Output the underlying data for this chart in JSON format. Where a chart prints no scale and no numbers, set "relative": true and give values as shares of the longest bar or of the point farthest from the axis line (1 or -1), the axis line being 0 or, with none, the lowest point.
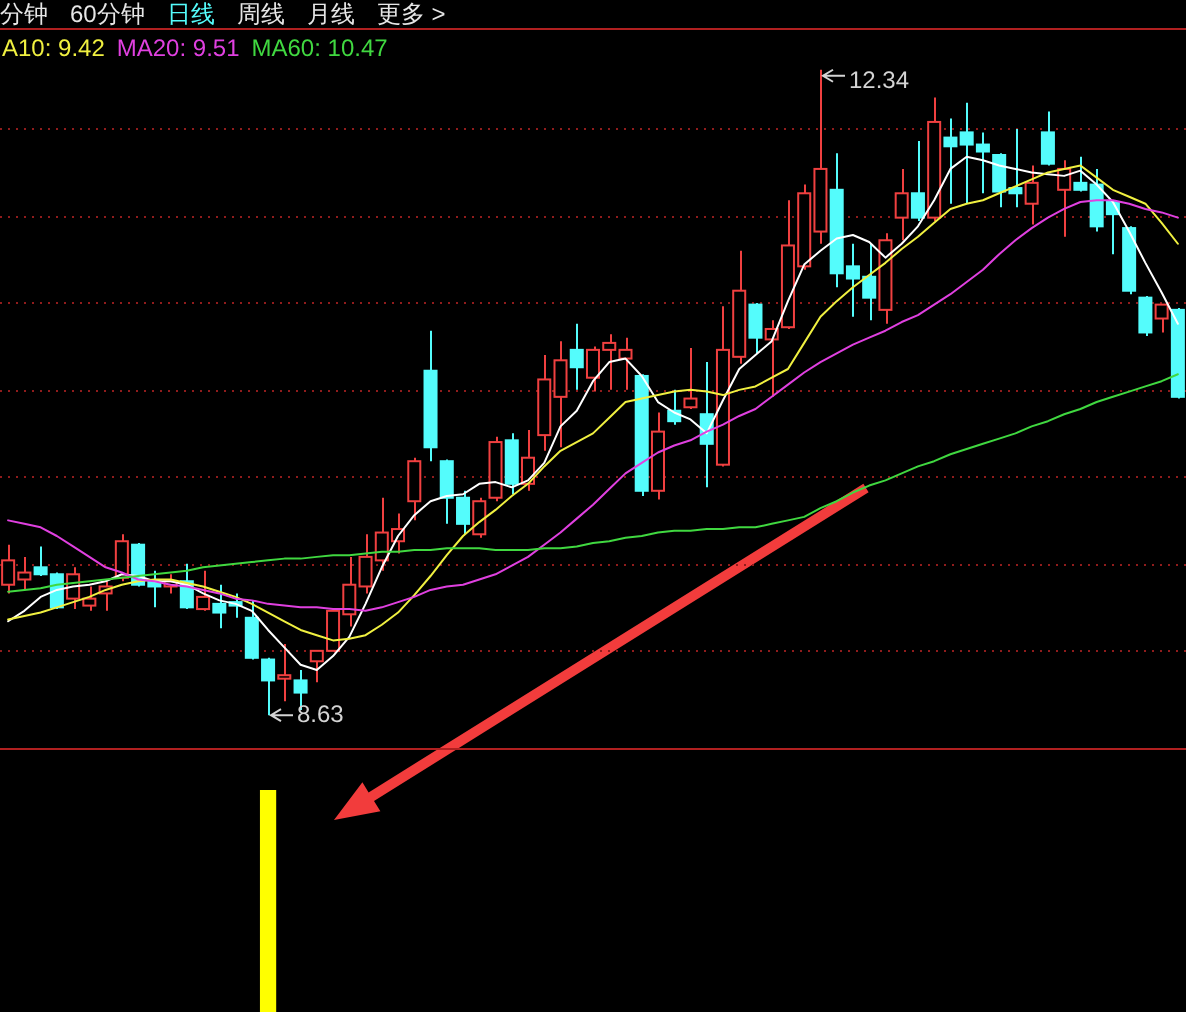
{
  "chart_data": [
    {
      "type": "other",
      "title": "日线",
      "annotations": [
        "分钟",
        "60分钟",
        "周线",
        "月线",
        "更多 >"
      ]
    },
    {
      "type": "candlestick",
      "categories": [
        null,
        null,
        null,
        null,
        null,
        null,
        null,
        null,
        null,
        null,
        null,
        null,
        null,
        null,
        null,
        null,
        null,
        null,
        null,
        null,
        null,
        null,
        null,
        null,
        null,
        null,
        null,
        null,
        null,
        null,
        null,
        null,
        null,
        null,
        null,
        null,
        null,
        null,
        null,
        null,
        null,
        null,
        null,
        null,
        null,
        null,
        null,
        null,
        null,
        null,
        null,
        null,
        null,
        null,
        null,
        null,
        null,
        null,
        null,
        null,
        null,
        null,
        null,
        null,
        null,
        null,
        null,
        null,
        null,
        null,
        null,
        null,
        null
      ],
      "ohlc": [
        [
          9.38,
          9.61,
          9.33,
          9.52
        ],
        [
          9.41,
          9.54,
          9.35,
          9.45
        ],
        [
          9.48,
          9.6,
          9.43,
          9.44
        ],
        [
          9.44,
          9.45,
          9.24,
          9.25
        ],
        [
          9.3,
          9.48,
          9.24,
          9.44
        ],
        [
          9.26,
          9.37,
          9.23,
          9.3
        ],
        [
          9.33,
          9.4,
          9.23,
          9.37
        ],
        [
          9.42,
          9.67,
          9.4,
          9.63
        ],
        [
          9.61,
          9.62,
          9.37,
          9.38
        ],
        [
          9.4,
          9.46,
          9.25,
          9.37
        ],
        [
          9.37,
          9.44,
          9.33,
          9.4
        ],
        [
          9.4,
          9.5,
          9.24,
          9.25
        ],
        [
          9.24,
          9.46,
          9.23,
          9.31
        ],
        [
          9.27,
          9.38,
          9.13,
          9.22
        ],
        [
          9.28,
          9.33,
          9.19,
          9.26
        ],
        [
          9.19,
          9.29,
          8.95,
          8.96
        ],
        [
          8.95,
          8.96,
          8.63,
          8.83
        ],
        [
          8.84,
          9.04,
          8.71,
          8.86
        ],
        [
          8.83,
          8.89,
          8.66,
          8.76
        ],
        [
          8.94,
          9.0,
          8.82,
          9.0
        ],
        [
          9.0,
          9.24,
          8.99,
          9.23
        ],
        [
          9.21,
          9.54,
          9.14,
          9.38
        ],
        [
          9.37,
          9.67,
          9.33,
          9.54
        ],
        [
          9.52,
          9.88,
          9.46,
          9.68
        ],
        [
          9.63,
          9.79,
          9.56,
          9.7
        ],
        [
          9.86,
          10.11,
          9.75,
          10.09
        ],
        [
          10.61,
          10.84,
          10.09,
          10.17
        ],
        [
          10.09,
          10.1,
          9.73,
          9.88
        ],
        [
          9.88,
          9.92,
          9.67,
          9.73
        ],
        [
          9.67,
          9.88,
          9.65,
          9.86
        ],
        [
          9.88,
          10.23,
          9.86,
          10.2
        ],
        [
          10.21,
          10.25,
          9.9,
          9.96
        ],
        [
          9.96,
          10.27,
          9.92,
          10.11
        ],
        [
          10.24,
          10.7,
          10.15,
          10.56
        ],
        [
          10.46,
          10.78,
          10.17,
          10.67
        ],
        [
          10.73,
          10.88,
          10.5,
          10.63
        ],
        [
          10.57,
          10.75,
          10.49,
          10.73
        ],
        [
          10.73,
          10.82,
          10.5,
          10.77
        ],
        [
          10.68,
          10.8,
          10.5,
          10.73
        ],
        [
          10.58,
          10.59,
          9.89,
          9.92
        ],
        [
          9.92,
          10.37,
          9.87,
          10.26
        ],
        [
          10.38,
          10.5,
          10.3,
          10.32
        ],
        [
          10.4,
          10.74,
          10.39,
          10.45
        ],
        [
          10.36,
          10.66,
          9.94,
          10.19
        ],
        [
          10.07,
          10.98,
          10.06,
          10.73
        ],
        [
          10.69,
          11.3,
          10.65,
          11.07
        ],
        [
          10.99,
          11.0,
          10.71,
          10.8
        ],
        [
          10.79,
          10.9,
          10.46,
          10.85
        ],
        [
          10.86,
          11.59,
          10.85,
          11.33
        ],
        [
          11.21,
          11.68,
          11.19,
          11.63
        ],
        [
          11.41,
          12.34,
          11.34,
          11.77
        ],
        [
          11.65,
          11.86,
          11.09,
          11.17
        ],
        [
          11.21,
          11.34,
          10.92,
          11.14
        ],
        [
          11.15,
          11.34,
          10.9,
          11.03
        ],
        [
          10.96,
          11.4,
          10.88,
          11.36
        ],
        [
          11.49,
          11.77,
          11.36,
          11.63
        ],
        [
          11.63,
          11.93,
          11.47,
          11.49
        ],
        [
          11.49,
          12.18,
          11.47,
          12.04
        ],
        [
          11.95,
          12.06,
          11.57,
          11.9
        ],
        [
          11.98,
          12.15,
          11.57,
          11.91
        ],
        [
          11.91,
          11.98,
          11.63,
          11.87
        ],
        [
          11.85,
          11.86,
          11.55,
          11.64
        ],
        [
          11.66,
          12.0,
          11.55,
          11.63
        ],
        [
          11.57,
          11.79,
          11.45,
          11.69
        ],
        [
          11.98,
          12.1,
          11.79,
          11.8
        ],
        [
          11.65,
          11.82,
          11.38,
          11.77
        ],
        [
          11.69,
          11.84,
          11.64,
          11.65
        ],
        [
          11.68,
          11.77,
          11.41,
          11.44
        ],
        [
          11.58,
          11.59,
          11.28,
          11.51
        ],
        [
          11.43,
          11.44,
          11.05,
          11.07
        ],
        [
          11.03,
          11.04,
          10.81,
          10.83
        ],
        [
          10.91,
          10.99,
          10.83,
          10.99
        ],
        [
          10.96,
          10.97,
          10.45,
          10.46
        ]
      ],
      "colors": [
        "#f04040",
        "#f04040",
        "#54fcfc",
        "#54fcfc",
        "#f04040",
        "#f04040",
        "#f04040",
        "#f04040",
        "#54fcfc",
        "#54fcfc",
        "#f04040",
        "#54fcfc",
        "#f04040",
        "#54fcfc",
        "#54fcfc",
        "#54fcfc",
        "#54fcfc",
        "#f04040",
        "#54fcfc",
        "#f04040",
        "#f04040",
        "#f04040",
        "#f04040",
        "#f04040",
        "#f04040",
        "#f04040",
        "#54fcfc",
        "#54fcfc",
        "#54fcfc",
        "#f04040",
        "#f04040",
        "#54fcfc",
        "#f04040",
        "#f04040",
        "#f04040",
        "#54fcfc",
        "#f04040",
        "#f04040",
        "#f04040",
        "#54fcfc",
        "#f04040",
        "#54fcfc",
        "#f04040",
        "#54fcfc",
        "#f04040",
        "#f04040",
        "#54fcfc",
        "#f04040",
        "#f04040",
        "#f04040",
        "#f04040",
        "#54fcfc",
        "#54fcfc",
        "#54fcfc",
        "#f04040",
        "#f04040",
        "#54fcfc",
        "#f04040",
        "#54fcfc",
        "#54fcfc",
        "#54fcfc",
        "#54fcfc",
        "#54fcfc",
        "#f04040",
        "#54fcfc",
        "#f04040",
        "#54fcfc",
        "#54fcfc",
        "#54fcfc",
        "#54fcfc",
        "#54fcfc",
        "#f04040",
        "#54fcfc"
      ],
      "series": [
        {
          "type": "line",
          "color": "#ffffff",
          "values": [
            9.17,
            9.23,
            9.31,
            9.35,
            9.37,
            9.38,
            9.4,
            9.44,
            9.43,
            9.4,
            9.4,
            9.38,
            9.33,
            9.29,
            9.27,
            9.23,
            9.12,
            9.02,
            8.92,
            8.89,
            8.97,
            9.08,
            9.27,
            9.48,
            9.66,
            9.78,
            9.86,
            9.89,
            9.9,
            9.96,
            9.97,
            9.94,
            9.98,
            10.08,
            10.29,
            10.38,
            10.55,
            10.66,
            10.68,
            10.58,
            10.43,
            10.37,
            10.33,
            10.25,
            10.44,
            10.62,
            10.7,
            10.78,
            11.01,
            11.22,
            11.3,
            11.37,
            11.39,
            11.35,
            11.26,
            11.34,
            11.44,
            11.59,
            11.77,
            11.84,
            11.82,
            11.79,
            11.77,
            11.75,
            11.74,
            11.73,
            11.76,
            11.68,
            11.58,
            11.41,
            11.23,
            11.06,
            10.88
          ]
        },
        {
          "type": "line",
          "name": "A10: 9.42",
          "color": "#f0f040",
          "values": [
            9.18,
            9.2,
            9.22,
            9.25,
            9.28,
            9.31,
            9.35,
            9.38,
            9.4,
            9.41,
            9.41,
            9.39,
            9.37,
            9.34,
            9.31,
            9.27,
            9.22,
            9.17,
            9.12,
            9.09,
            9.06,
            9.07,
            9.09,
            9.15,
            9.22,
            9.32,
            9.43,
            9.55,
            9.66,
            9.74,
            9.81,
            9.89,
            9.96,
            10.06,
            10.15,
            10.2,
            10.25,
            10.34,
            10.43,
            10.45,
            10.47,
            10.49,
            10.5,
            10.49,
            10.47,
            10.5,
            10.52,
            10.57,
            10.62,
            10.77,
            10.92,
            11.01,
            11.09,
            11.16,
            11.23,
            11.31,
            11.38,
            11.46,
            11.54,
            11.57,
            11.59,
            11.63,
            11.67,
            11.71,
            11.75,
            11.77,
            11.79,
            11.72,
            11.65,
            11.61,
            11.57,
            11.46,
            11.34
          ]
        },
        {
          "type": "line",
          "name": "MA20: 9.51",
          "color": "#e040e0",
          "values": [
            9.75,
            9.73,
            9.71,
            9.66,
            9.6,
            9.54,
            9.48,
            9.45,
            9.41,
            9.4,
            9.38,
            9.37,
            9.35,
            9.33,
            9.3,
            9.29,
            9.27,
            9.26,
            9.25,
            9.25,
            9.24,
            9.24,
            9.23,
            9.25,
            9.28,
            9.31,
            9.35,
            9.37,
            9.38,
            9.41,
            9.44,
            9.49,
            9.54,
            9.61,
            9.68,
            9.76,
            9.84,
            9.93,
            10.02,
            10.08,
            10.14,
            10.18,
            10.21,
            10.26,
            10.3,
            10.35,
            10.39,
            10.46,
            10.53,
            10.6,
            10.66,
            10.71,
            10.76,
            10.8,
            10.84,
            10.89,
            10.93,
            10.99,
            11.05,
            11.12,
            11.19,
            11.28,
            11.36,
            11.43,
            11.49,
            11.54,
            11.58,
            11.59,
            11.59,
            11.57,
            11.54,
            11.52,
            11.49
          ]
        },
        {
          "type": "line",
          "name": "MA60: 10.47",
          "color": "#40d840",
          "values": [
            9.34,
            9.35,
            9.36,
            9.38,
            9.39,
            9.4,
            9.41,
            9.42,
            9.43,
            9.44,
            9.45,
            9.46,
            9.48,
            9.49,
            9.5,
            9.51,
            9.52,
            9.53,
            9.53,
            9.54,
            9.55,
            9.55,
            9.56,
            9.57,
            9.57,
            9.58,
            9.58,
            9.59,
            9.59,
            9.59,
            9.58,
            9.58,
            9.58,
            9.59,
            9.59,
            9.6,
            9.62,
            9.63,
            9.65,
            9.66,
            9.68,
            9.69,
            9.69,
            9.7,
            9.7,
            9.71,
            9.71,
            9.73,
            9.75,
            9.77,
            9.82,
            9.86,
            9.91,
            9.95,
            9.98,
            10.02,
            10.06,
            10.09,
            10.13,
            10.16,
            10.19,
            10.22,
            10.25,
            10.29,
            10.32,
            10.36,
            10.39,
            10.43,
            10.46,
            10.49,
            10.52,
            10.55,
            10.59
          ]
        }
      ],
      "ylim": [
        8.43,
        12.58
      ],
      "yticks": [
        {
          "value": 9,
          "label": null
        },
        {
          "value": 9.5,
          "label": null
        },
        {
          "value": 10,
          "label": null
        },
        {
          "value": 10.5,
          "label": null
        },
        {
          "value": 11,
          "label": null
        },
        {
          "value": 11.5,
          "label": null
        },
        {
          "value": 12,
          "label": null
        }
      ],
      "grid": "y",
      "legend": "top left",
      "annotations": [
        "12.34",
        "8.63"
      ]
    },
    {
      "type": "bar",
      "relative": true,
      "color": "#ffff00",
      "categories": [
        null,
        null,
        null,
        null,
        null,
        null,
        null,
        null,
        null,
        null,
        null,
        null,
        null,
        null,
        null,
        null,
        null,
        null,
        null,
        null,
        null,
        null,
        null,
        null,
        null,
        null,
        null,
        null,
        null,
        null,
        null,
        null,
        null,
        null,
        null,
        null,
        null,
        null,
        null,
        null,
        null,
        null,
        null,
        null,
        null,
        null,
        null,
        null,
        null,
        null,
        null,
        null,
        null,
        null,
        null,
        null,
        null,
        null,
        null,
        null,
        null,
        null,
        null,
        null,
        null,
        null,
        null,
        null,
        null,
        null,
        null,
        null,
        null
      ],
      "values": [
        null,
        null,
        null,
        null,
        null,
        null,
        null,
        null,
        null,
        null,
        null,
        null,
        null,
        null,
        null,
        null,
        1,
        null,
        null,
        null,
        null,
        null,
        null,
        null,
        null,
        null,
        null,
        null,
        null,
        null,
        null,
        null,
        null,
        null,
        null,
        null,
        null,
        null,
        null,
        null,
        null,
        null,
        null,
        null,
        null,
        null,
        null,
        null,
        null,
        null,
        null,
        null,
        null,
        null,
        null,
        null,
        null,
        null,
        null,
        null,
        null,
        null,
        null,
        null,
        null,
        null,
        null,
        null,
        null,
        null,
        null,
        null,
        null
      ]
    }
  ]
}
